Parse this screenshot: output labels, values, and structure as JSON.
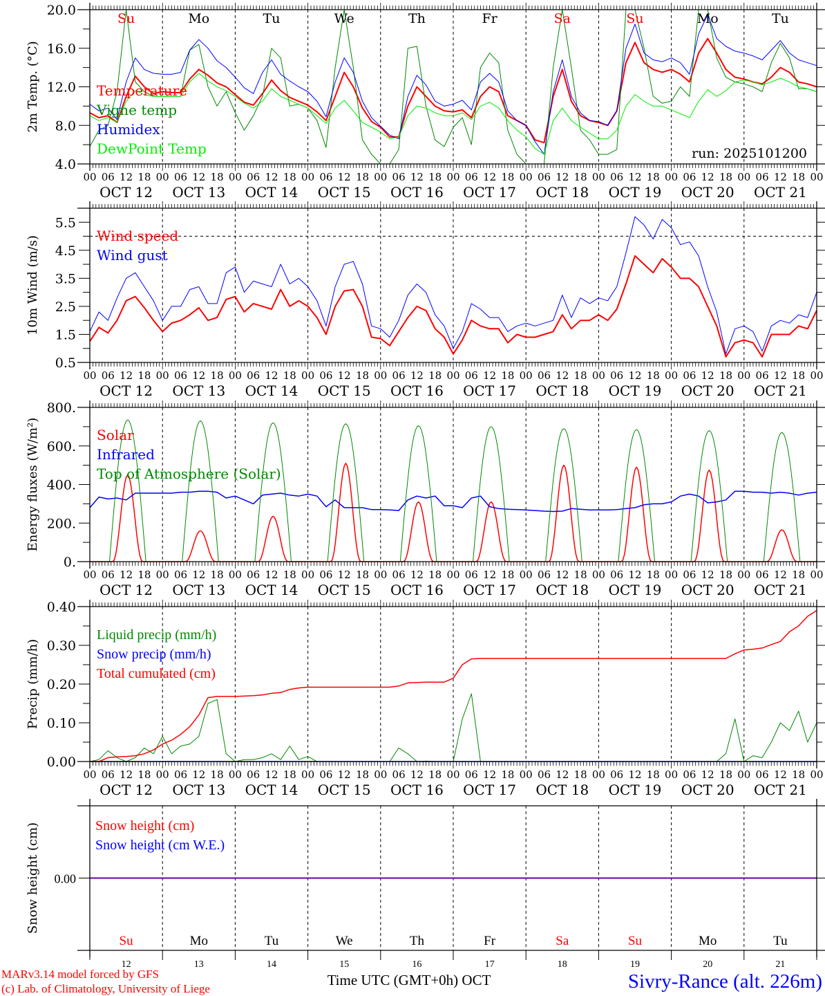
{
  "run_label": "run: 2025101200",
  "hour_labels": [
    "00",
    "06",
    "12",
    "18"
  ],
  "date_labels": [
    "OCT 12",
    "OCT 13",
    "OCT 14",
    "OCT 15",
    "OCT 16",
    "OCT 17",
    "OCT 18",
    "OCT 19",
    "OCT 20",
    "OCT 21"
  ],
  "weekdays": [
    {
      "label": "Su",
      "color": "#ff0000"
    },
    {
      "label": "Mo",
      "color": "#000000"
    },
    {
      "label": "Tu",
      "color": "#000000"
    },
    {
      "label": "We",
      "color": "#000000"
    },
    {
      "label": "Th",
      "color": "#000000"
    },
    {
      "label": "Fr",
      "color": "#000000"
    },
    {
      "label": "Sa",
      "color": "#ff0000"
    },
    {
      "label": "Su",
      "color": "#ff0000"
    },
    {
      "label": "Mo",
      "color": "#000000"
    },
    {
      "label": "Tu",
      "color": "#000000"
    }
  ],
  "day_numbers": [
    "12",
    "13",
    "14",
    "15",
    "16",
    "17",
    "18",
    "19",
    "20",
    "21"
  ],
  "footer": {
    "model": "MARv3.14 model forced by GFS",
    "credit": "(c) Lab. of Climatology, University of Liege",
    "xlabel": "Time UTC (GMT+0h) OCT",
    "station": "Sivry-Rance (alt. 226m)"
  },
  "chart_data": [
    {
      "type": "line",
      "ylabel": "2m Temp. (°C)",
      "ylim": [
        4,
        20
      ],
      "yticks": [
        "4.0",
        "8.0",
        "12.0",
        "16.0",
        "20.0"
      ],
      "x_hours_step": 3,
      "series": [
        {
          "name": "Temperature",
          "color": "#ff0000",
          "width": 2,
          "values": [
            9.3,
            8.8,
            9.0,
            8.3,
            11.0,
            13.1,
            12.0,
            11.3,
            11.5,
            11.4,
            11.4,
            12.8,
            13.8,
            13.2,
            12.4,
            12.0,
            11.2,
            10.4,
            10.1,
            11.3,
            12.7,
            11.6,
            10.9,
            10.5,
            10.1,
            9.4,
            8.5,
            11.0,
            13.5,
            12.0,
            9.8,
            8.4,
            7.8,
            6.8,
            6.8,
            10.0,
            12.0,
            11.0,
            10.0,
            9.5,
            9.4,
            9.6,
            8.8,
            11.0,
            12.0,
            11.5,
            9.0,
            8.5,
            8.0,
            6.5,
            6.2,
            11.0,
            13.8,
            10.5,
            9.0,
            8.5,
            8.3,
            8.0,
            9.5,
            14.5,
            16.6,
            14.5,
            13.8,
            13.5,
            13.8,
            13.3,
            12.5,
            15.5,
            17.0,
            15.5,
            13.8,
            13.0,
            12.8,
            12.5,
            12.3,
            13.0,
            14.0,
            13.5,
            12.5,
            12.3,
            12.0
          ]
        },
        {
          "name": "Vigne temp",
          "color": "#008800",
          "width": 1,
          "values": [
            5.8,
            7.5,
            8.0,
            11.5,
            20.0,
            12.5,
            11.5,
            11.0,
            11.0,
            11.0,
            11.0,
            15.8,
            16.4,
            12.0,
            10.0,
            11.5,
            9.3,
            7.5,
            9.0,
            11.0,
            16.0,
            15.0,
            10.0,
            10.2,
            9.8,
            8.5,
            5.7,
            14.0,
            20.0,
            14.0,
            6.5,
            5.0,
            4.0,
            3.5,
            5.5,
            16.0,
            16.2,
            10.0,
            6.5,
            5.8,
            7.8,
            8.8,
            6.0,
            14.0,
            15.5,
            14.5,
            7.5,
            5.0,
            4.0,
            3.5,
            3.5,
            14.0,
            20.0,
            14.0,
            7.5,
            6.5,
            5.0,
            5.0,
            5.5,
            20.0,
            20.0,
            16.0,
            11.0,
            10.3,
            10.5,
            12.0,
            11.0,
            20.0,
            20.0,
            15.0,
            13.0,
            12.5,
            12.3,
            12.0,
            11.5,
            14.5,
            16.5,
            15.0,
            11.8,
            11.8,
            11.5
          ]
        },
        {
          "name": "Humidex",
          "color": "#0000ff",
          "width": 1,
          "values": [
            10.2,
            9.5,
            9.8,
            8.6,
            12.5,
            15.0,
            13.8,
            13.4,
            13.3,
            13.3,
            13.5,
            15.8,
            16.9,
            16.0,
            14.7,
            14.0,
            13.0,
            11.9,
            11.3,
            13.5,
            14.8,
            13.3,
            12.6,
            12.0,
            11.5,
            10.5,
            8.9,
            12.5,
            15.0,
            13.5,
            10.5,
            8.8,
            7.9,
            7.0,
            6.6,
            11.0,
            13.2,
            12.2,
            10.5,
            10.0,
            10.2,
            10.6,
            9.6,
            12.5,
            13.4,
            12.5,
            9.5,
            8.5,
            8.0,
            6.3,
            5.0,
            11.5,
            14.8,
            11.0,
            9.3,
            8.5,
            8.4,
            8.0,
            9.5,
            16.0,
            18.5,
            15.5,
            14.8,
            14.6,
            15.0,
            14.5,
            13.3,
            17.5,
            19.5,
            17.0,
            16.2,
            15.7,
            15.5,
            15.2,
            14.8,
            15.8,
            16.8,
            15.5,
            14.8,
            14.5,
            14.2
          ]
        },
        {
          "name": "DewPoint Temp",
          "color": "#00ee00",
          "width": 1,
          "values": [
            9.0,
            8.5,
            8.8,
            8.3,
            10.5,
            11.6,
            11.2,
            11.0,
            11.0,
            11.0,
            11.0,
            12.5,
            13.4,
            12.6,
            12.0,
            11.6,
            11.0,
            10.3,
            9.8,
            10.5,
            11.8,
            11.0,
            10.6,
            10.2,
            9.8,
            9.0,
            8.2,
            9.8,
            10.6,
            9.5,
            8.3,
            7.8,
            7.3,
            6.6,
            6.8,
            9.0,
            10.0,
            9.8,
            9.3,
            9.0,
            9.0,
            9.3,
            8.6,
            10.0,
            10.4,
            9.8,
            8.5,
            7.5,
            6.8,
            5.6,
            5.0,
            8.5,
            9.8,
            8.5,
            7.8,
            7.2,
            6.6,
            6.6,
            7.5,
            10.0,
            11.2,
            10.5,
            10.0,
            10.0,
            9.6,
            9.2,
            8.8,
            10.5,
            11.7,
            11.0,
            11.6,
            12.5,
            12.7,
            12.5,
            12.2,
            12.5,
            12.9,
            12.5,
            12.0,
            11.8,
            11.5
          ]
        }
      ]
    },
    {
      "type": "line",
      "ylabel": "10m Wind (m/s)",
      "ylim": [
        0.5,
        6.0
      ],
      "yticks": [
        "0.5",
        "1.5",
        "2.5",
        "3.5",
        "4.5",
        "5.5"
      ],
      "reference_line": 5.0,
      "x_hours_step": 3,
      "series": [
        {
          "name": "Wind speed",
          "color": "#ff0000",
          "width": 2,
          "values": [
            1.25,
            1.75,
            1.55,
            2.0,
            2.7,
            2.85,
            2.45,
            2.0,
            1.6,
            1.9,
            2.0,
            2.2,
            2.45,
            2.0,
            2.1,
            2.75,
            2.85,
            2.3,
            2.6,
            2.5,
            2.4,
            3.1,
            2.5,
            2.7,
            2.5,
            2.1,
            1.5,
            2.5,
            3.05,
            3.1,
            2.5,
            1.4,
            1.35,
            1.1,
            1.6,
            2.1,
            2.5,
            2.35,
            1.7,
            1.4,
            0.8,
            1.3,
            2.0,
            1.8,
            1.7,
            1.7,
            1.2,
            1.5,
            1.4,
            1.4,
            1.5,
            1.6,
            2.2,
            1.7,
            2.0,
            2.0,
            2.2,
            2.0,
            2.4,
            3.3,
            4.3,
            4.0,
            3.7,
            4.2,
            3.9,
            3.5,
            3.5,
            3.2,
            2.5,
            1.8,
            0.7,
            1.2,
            1.3,
            1.2,
            0.7,
            1.5,
            1.5,
            1.5,
            1.8,
            1.7,
            2.35
          ]
        },
        {
          "name": "Wind gust",
          "color": "#0000ff",
          "width": 1,
          "values": [
            1.6,
            2.3,
            2.0,
            2.8,
            3.5,
            3.7,
            3.2,
            2.7,
            2.0,
            2.5,
            2.5,
            3.1,
            3.2,
            2.6,
            2.6,
            3.7,
            3.9,
            3.0,
            3.4,
            3.3,
            3.2,
            4.0,
            3.3,
            3.5,
            3.2,
            2.7,
            1.8,
            3.2,
            4.0,
            4.1,
            3.3,
            1.8,
            1.7,
            1.4,
            2.0,
            2.9,
            3.3,
            3.0,
            2.2,
            1.8,
            1.0,
            1.6,
            2.6,
            2.4,
            2.1,
            2.1,
            1.6,
            1.8,
            1.9,
            1.8,
            1.9,
            2.0,
            2.9,
            2.1,
            2.8,
            2.6,
            2.8,
            2.7,
            3.2,
            4.4,
            5.7,
            5.4,
            4.9,
            5.6,
            5.3,
            4.7,
            4.8,
            4.3,
            3.2,
            2.3,
            0.8,
            1.7,
            1.8,
            1.6,
            0.9,
            1.8,
            2.0,
            1.9,
            2.2,
            2.1,
            3.0
          ]
        }
      ]
    },
    {
      "type": "line",
      "ylabel": "Energy fluxes (W/m²)",
      "ylim": [
        0,
        800
      ],
      "yticks": [
        "0.",
        "200.",
        "400.",
        "600.",
        "800."
      ],
      "x_hours_step": 3,
      "daylight_hours": [
        6.5,
        18.5
      ],
      "series": [
        {
          "name": "Solar",
          "color": "#ff0000",
          "width": 1.5,
          "daily_peaks": [
            450,
            160,
            235,
            510,
            310,
            310,
            500,
            490,
            475,
            165
          ]
        },
        {
          "name": "Infrared",
          "color": "#0000ff",
          "width": 1.5,
          "values": [
            280,
            335,
            325,
            330,
            320,
            355,
            355,
            355,
            355,
            355,
            360,
            360,
            365,
            365,
            360,
            330,
            340,
            320,
            300,
            345,
            350,
            355,
            345,
            340,
            350,
            340,
            285,
            320,
            280,
            280,
            280,
            270,
            270,
            268,
            265,
            320,
            340,
            330,
            340,
            290,
            290,
            280,
            330,
            340,
            285,
            275,
            272,
            270,
            268,
            265,
            262,
            260,
            262,
            275,
            272,
            268,
            268,
            268,
            270,
            275,
            280,
            295,
            300,
            300,
            310,
            340,
            350,
            340,
            305,
            310,
            320,
            365,
            365,
            360,
            360,
            355,
            360,
            355,
            345,
            355,
            360
          ]
        },
        {
          "name": "Top of Atmosphere (Solar)",
          "color": "#008800",
          "width": 1,
          "daily_peaks": [
            735,
            730,
            720,
            715,
            705,
            700,
            690,
            685,
            680,
            670
          ]
        }
      ]
    },
    {
      "type": "line",
      "ylabel": "Precip (mm/h)",
      "ylim": [
        0,
        0.4
      ],
      "yticks": [
        "0.00",
        "0.10",
        "0.20",
        "0.30",
        "0.40"
      ],
      "x_hours_step": 3,
      "series": [
        {
          "name": "Liquid precip (mm/h)",
          "color": "#008800",
          "width": 1,
          "values": [
            0,
            0.005,
            0.028,
            0.01,
            0,
            0.01,
            0.035,
            0.02,
            0.065,
            0.02,
            0.04,
            0.045,
            0.065,
            0.15,
            0.16,
            0.02,
            0,
            0.005,
            0.005,
            0.01,
            0.02,
            0.005,
            0.04,
            0.005,
            0.013,
            0,
            0,
            0,
            0,
            0,
            0,
            0,
            0,
            0,
            0.035,
            0.02,
            0,
            0.001,
            0,
            0,
            0,
            0.11,
            0.175,
            0,
            0,
            0,
            0,
            0,
            0,
            0,
            0,
            0,
            0,
            0,
            0,
            0,
            0,
            0,
            0,
            0,
            0,
            0,
            0,
            0,
            0,
            0,
            0,
            0,
            0,
            0,
            0.02,
            0.11,
            0,
            0.015,
            0.01,
            0.05,
            0.1,
            0.08,
            0.13,
            0.05,
            0.1
          ]
        },
        {
          "name": "Snow precip (mm/h)",
          "color": "#0000ff",
          "width": 1.5,
          "values": [
            0,
            0
          ]
        },
        {
          "name": "Total cumulated (cm)",
          "color": "#ff0000",
          "width": 1.5,
          "values": [
            0,
            0,
            0.01,
            0.012,
            0.013,
            0.015,
            0.02,
            0.03,
            0.045,
            0.055,
            0.07,
            0.09,
            0.12,
            0.165,
            0.168,
            0.168,
            0.168,
            0.169,
            0.17,
            0.172,
            0.176,
            0.178,
            0.186,
            0.19,
            0.192,
            0.192,
            0.192,
            0.192,
            0.192,
            0.192,
            0.192,
            0.192,
            0.192,
            0.192,
            0.195,
            0.203,
            0.204,
            0.205,
            0.205,
            0.205,
            0.215,
            0.25,
            0.265,
            0.266,
            0.266,
            0.266,
            0.266,
            0.266,
            0.266,
            0.266,
            0.266,
            0.266,
            0.266,
            0.266,
            0.266,
            0.266,
            0.266,
            0.266,
            0.266,
            0.266,
            0.266,
            0.266,
            0.266,
            0.266,
            0.266,
            0.266,
            0.266,
            0.266,
            0.266,
            0.266,
            0.266,
            0.278,
            0.288,
            0.29,
            0.293,
            0.302,
            0.31,
            0.335,
            0.35,
            0.375,
            0.39
          ]
        }
      ]
    },
    {
      "type": "line",
      "ylabel": "Snow height (cm)",
      "ylim": [
        -1,
        1
      ],
      "yticks": [
        "0.00"
      ],
      "series": [
        {
          "name": "Snow height (cm)",
          "color": "#ff0000",
          "width": 2,
          "values": [
            0,
            0
          ]
        },
        {
          "name": "Snow height (cm W.E.)",
          "color": "#0000ff",
          "width": 1,
          "values": [
            0,
            0
          ]
        }
      ]
    }
  ]
}
